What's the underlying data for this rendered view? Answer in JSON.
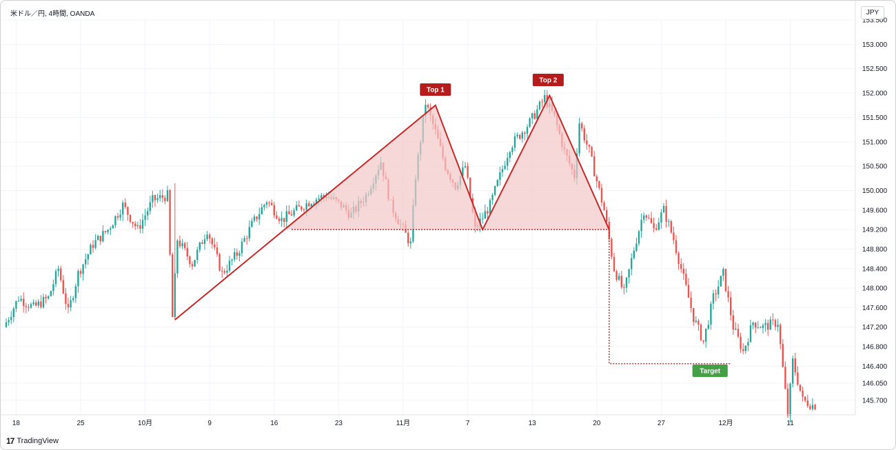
{
  "header": {
    "symbol": "米ドル／円, 4時間, OANDA",
    "currency": "JPY"
  },
  "branding": {
    "logo_text": "TradingView"
  },
  "colors": {
    "up": "#26a69a",
    "down": "#ef5350",
    "pattern_line": "#c62828",
    "pattern_fill": "#f4c7c7",
    "target_label": "#43a047",
    "top_label": "#b71c1c"
  },
  "chart_data": {
    "type": "candlestick",
    "title": "",
    "y_axis": {
      "range": [
        145.4,
        153.5
      ],
      "labels": [
        "153.500",
        "153.000",
        "152.500",
        "152.000",
        "151.500",
        "151.000",
        "150.500",
        "150.000",
        "149.600",
        "149.200",
        "148.800",
        "148.400",
        "148.000",
        "147.600",
        "147.200",
        "146.800",
        "146.400",
        "146.050",
        "145.700"
      ]
    },
    "x_axis": {
      "labels": [
        "18",
        "25",
        "10月",
        "9",
        "16",
        "23",
        "11月",
        "7",
        "13",
        "20",
        "27",
        "12月",
        "11"
      ],
      "label_index": [
        4,
        30,
        56,
        82,
        108,
        134,
        160,
        186,
        212,
        238,
        264,
        290,
        316
      ]
    },
    "series_anchors": [
      [
        0,
        147.2
      ],
      [
        6,
        147.8
      ],
      [
        12,
        147.6
      ],
      [
        18,
        147.8
      ],
      [
        22,
        148.4
      ],
      [
        26,
        147.5
      ],
      [
        30,
        148.3
      ],
      [
        36,
        148.9
      ],
      [
        42,
        149.2
      ],
      [
        48,
        149.7
      ],
      [
        54,
        149.2
      ],
      [
        60,
        149.8
      ],
      [
        66,
        149.9
      ],
      [
        68,
        147.4
      ],
      [
        70,
        149.0
      ],
      [
        76,
        148.5
      ],
      [
        82,
        149.2
      ],
      [
        88,
        148.3
      ],
      [
        94,
        148.7
      ],
      [
        100,
        149.3
      ],
      [
        106,
        149.8
      ],
      [
        112,
        149.4
      ],
      [
        118,
        149.6
      ],
      [
        124,
        149.8
      ],
      [
        130,
        149.9
      ],
      [
        136,
        149.7
      ],
      [
        140,
        149.5
      ],
      [
        146,
        149.9
      ],
      [
        152,
        150.6
      ],
      [
        156,
        149.7
      ],
      [
        160,
        149.3
      ],
      [
        164,
        148.9
      ],
      [
        166,
        150.3
      ],
      [
        170,
        151.8
      ],
      [
        174,
        151.2
      ],
      [
        178,
        150.5
      ],
      [
        182,
        150.1
      ],
      [
        186,
        150.5
      ],
      [
        190,
        149.2
      ],
      [
        196,
        149.7
      ],
      [
        204,
        150.9
      ],
      [
        212,
        151.4
      ],
      [
        218,
        151.9
      ],
      [
        222,
        151.5
      ],
      [
        226,
        150.8
      ],
      [
        230,
        150.3
      ],
      [
        232,
        151.4
      ],
      [
        236,
        150.8
      ],
      [
        238,
        150.4
      ],
      [
        242,
        149.6
      ],
      [
        246,
        148.4
      ],
      [
        250,
        147.9
      ],
      [
        254,
        148.8
      ],
      [
        258,
        149.6
      ],
      [
        262,
        149.2
      ],
      [
        266,
        149.6
      ],
      [
        270,
        149.0
      ],
      [
        274,
        148.2
      ],
      [
        278,
        147.4
      ],
      [
        282,
        146.9
      ],
      [
        286,
        147.8
      ],
      [
        290,
        148.3
      ],
      [
        294,
        147.2
      ],
      [
        298,
        146.7
      ],
      [
        302,
        147.3
      ],
      [
        306,
        147.2
      ],
      [
        312,
        147.3
      ],
      [
        316,
        145.4
      ],
      [
        318,
        146.5
      ],
      [
        322,
        145.7
      ],
      [
        326,
        145.6
      ]
    ],
    "pattern": {
      "type": "double top",
      "labels": [
        "Top 1",
        "Top 2",
        "Target"
      ],
      "trend_points": [
        [
          68,
          147.35
        ],
        [
          173,
          151.75
        ],
        [
          192,
          149.2
        ],
        [
          219,
          151.95
        ],
        [
          243,
          149.2
        ]
      ],
      "neckline": 149.2,
      "neckline_x": [
        115,
        243
      ],
      "target_price": 146.45,
      "target_x": [
        243,
        292
      ]
    }
  }
}
